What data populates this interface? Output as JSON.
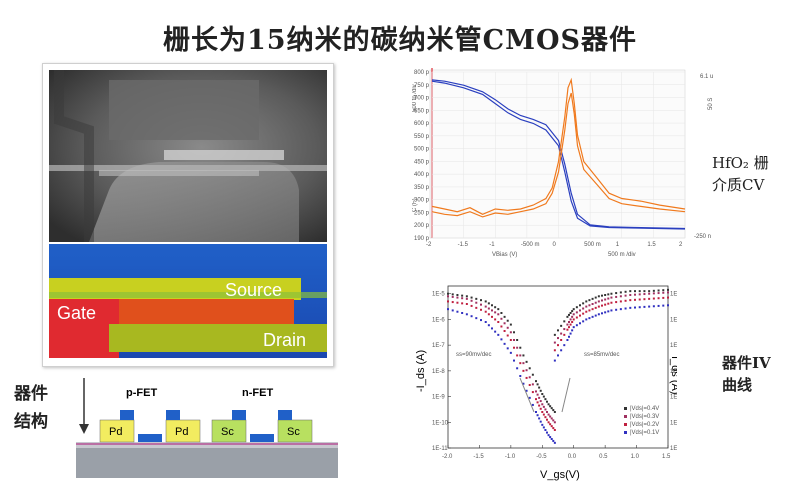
{
  "title": "栅长为15纳米的碳纳米管CMOS器件",
  "sem_image": {
    "labels": {
      "source": "Source",
      "gate": "Gate",
      "drain": "Drain"
    }
  },
  "structure": {
    "label_line1": "器件",
    "label_line2": "结构",
    "pfet_label": "p-FET",
    "nfet_label": "n-FET",
    "pfet_contacts": [
      "Pd",
      "Pd"
    ],
    "nfet_contacts": [
      "Sc",
      "Sc"
    ]
  },
  "cv_caption": {
    "line1": "HfO₂ 栅",
    "line2": "介质CV"
  },
  "iv_caption": {
    "line1": "器件IV",
    "line2": "曲线"
  },
  "colors": {
    "blue": "#2a3fbf",
    "orange": "#f07a1e",
    "red_axis": "#e0303a"
  },
  "chart_data": [
    {
      "type": "line",
      "id": "cv",
      "xlabel": "VBias (V)",
      "x_unit_label": "500 m /div",
      "y_left_label": "C (F)",
      "y_left_unit": "500 fp /div",
      "y_right_unit": "50 S",
      "x_ticks": [
        "-2",
        "-1.5",
        "-1",
        "-500 m",
        "0",
        "500 m",
        "1",
        "1.5",
        "2"
      ],
      "y_ticks": [
        "800 p",
        "750 p",
        "700 p",
        "650 p",
        "600 p",
        "550 p",
        "500 p",
        "450 p",
        "400 p",
        "350 p",
        "300 p",
        "250 p",
        "200 p",
        "190 p"
      ],
      "y_right_top": "6.1 u",
      "y_right_bottom": "-250 n",
      "xlim": [
        -2,
        2
      ],
      "ylim": [
        190,
        820
      ],
      "series": [
        {
          "color": "blue",
          "x": [
            -2,
            -1.8,
            -1.5,
            -1.2,
            -1.0,
            -0.8,
            -0.6,
            -0.4,
            -0.2,
            0,
            0.1,
            0.2,
            0.3,
            0.5,
            0.8,
            1.2,
            1.6,
            2
          ],
          "y": [
            790,
            785,
            770,
            745,
            715,
            680,
            655,
            640,
            620,
            560,
            470,
            360,
            280,
            240,
            232,
            230,
            228,
            226
          ]
        },
        {
          "color": "blue",
          "x": [
            -2,
            -1.8,
            -1.5,
            -1.2,
            -1.0,
            -0.8,
            -0.6,
            -0.4,
            -0.2,
            0,
            0.1,
            0.2,
            0.3,
            0.5,
            0.8,
            1.2,
            1.6,
            2
          ],
          "y": [
            785,
            778,
            760,
            735,
            700,
            665,
            640,
            625,
            600,
            540,
            440,
            330,
            265,
            236,
            230,
            228,
            226,
            224
          ]
        },
        {
          "color": "orange",
          "x": [
            -2,
            -1.8,
            -1.6,
            -1.4,
            -1.2,
            -1.0,
            -0.8,
            -0.6,
            -0.4,
            -0.2,
            -0.1,
            0,
            0.1,
            0.15,
            0.2,
            0.25,
            0.3,
            0.4,
            0.6,
            0.8,
            1.0,
            1.3,
            1.6,
            2
          ],
          "y": [
            310,
            300,
            290,
            305,
            280,
            300,
            295,
            300,
            315,
            340,
            380,
            480,
            650,
            760,
            790,
            700,
            580,
            480,
            420,
            360,
            340,
            330,
            315,
            300
          ]
        },
        {
          "color": "orange",
          "x": [
            -2,
            -1.8,
            -1.6,
            -1.4,
            -1.2,
            -1.0,
            -0.8,
            -0.6,
            -0.4,
            -0.2,
            -0.1,
            0,
            0.1,
            0.15,
            0.2,
            0.25,
            0.3,
            0.4,
            0.6,
            0.8,
            1.0,
            1.3,
            1.6,
            2
          ],
          "y": [
            290,
            280,
            275,
            290,
            270,
            285,
            280,
            290,
            300,
            320,
            360,
            440,
            600,
            700,
            740,
            660,
            540,
            450,
            395,
            340,
            320,
            310,
            300,
            290
          ]
        }
      ]
    },
    {
      "type": "scatter",
      "id": "iv",
      "xlabel": "V_gs(V)",
      "ylabel_left": "-I_ds (A)",
      "ylabel_right": "I_ds (A)",
      "x_ticks": [
        "-2.0",
        "-1.5",
        "-1.0",
        "-0.5",
        "0.0",
        "0.5",
        "1.0",
        "1.5"
      ],
      "y_ticks": [
        "1E-5",
        "1E-6",
        "1E-7",
        "1E-8",
        "1E-9",
        "1E-10",
        "1E-11"
      ],
      "xlim": [
        -2.0,
        1.5
      ],
      "ylim_log10": [
        -11,
        -4.7
      ],
      "annotations": [
        "ss=90mv/dec",
        "ss=85mv/dec"
      ],
      "legend": [
        "|Vds|=0.4V",
        "|Vds|=0.3V",
        "|Vds|=0.2V",
        "|Vds|=0.1V"
      ],
      "series": [
        {
          "name": "|Vds|=0.4V",
          "color": "#333333",
          "p_x": [
            -2.0,
            -1.7,
            -1.4,
            -1.2,
            -1.0,
            -0.8,
            -0.6,
            -0.5,
            -0.4,
            -0.3
          ],
          "p_y": [
            -5.0,
            -5.1,
            -5.3,
            -5.6,
            -6.2,
            -7.4,
            -8.4,
            -8.9,
            -9.3,
            -9.6
          ],
          "n_x": [
            -0.3,
            -0.1,
            0.0,
            0.2,
            0.4,
            0.6,
            0.9,
            1.2,
            1.5
          ],
          "n_y": [
            -6.6,
            -5.9,
            -5.6,
            -5.3,
            -5.1,
            -5.0,
            -4.9,
            -4.9,
            -4.85
          ]
        },
        {
          "name": "|Vds|=0.3V",
          "color": "#a03060",
          "p_x": [
            -2.0,
            -1.7,
            -1.4,
            -1.2,
            -1.0,
            -0.8,
            -0.6,
            -0.5,
            -0.4,
            -0.3
          ],
          "p_y": [
            -5.1,
            -5.2,
            -5.5,
            -5.8,
            -6.5,
            -7.7,
            -8.8,
            -9.3,
            -9.7,
            -10.0
          ],
          "n_x": [
            -0.3,
            -0.1,
            0.0,
            0.2,
            0.4,
            0.6,
            0.9,
            1.2,
            1.5
          ],
          "n_y": [
            -6.9,
            -6.2,
            -5.8,
            -5.5,
            -5.3,
            -5.15,
            -5.05,
            -5.0,
            -4.95
          ]
        },
        {
          "name": "|Vds|=0.2V",
          "color": "#c02040",
          "p_x": [
            -2.0,
            -1.7,
            -1.4,
            -1.2,
            -1.0,
            -0.8,
            -0.6,
            -0.5,
            -0.4,
            -0.3
          ],
          "p_y": [
            -5.3,
            -5.4,
            -5.7,
            -6.1,
            -6.8,
            -8.0,
            -9.1,
            -9.6,
            -10.0,
            -10.3
          ],
          "n_x": [
            -0.3,
            -0.1,
            0.0,
            0.2,
            0.4,
            0.6,
            0.9,
            1.2,
            1.5
          ],
          "n_y": [
            -7.2,
            -6.4,
            -6.0,
            -5.7,
            -5.5,
            -5.35,
            -5.25,
            -5.2,
            -5.15
          ]
        },
        {
          "name": "|Vds|=0.1V",
          "color": "#3030c0",
          "p_x": [
            -2.0,
            -1.7,
            -1.4,
            -1.2,
            -1.0,
            -0.8,
            -0.6,
            -0.5,
            -0.4,
            -0.3
          ],
          "p_y": [
            -5.6,
            -5.8,
            -6.1,
            -6.6,
            -7.3,
            -8.5,
            -9.6,
            -10.1,
            -10.5,
            -10.8
          ],
          "n_x": [
            -0.3,
            -0.1,
            0.0,
            0.2,
            0.4,
            0.6,
            0.9,
            1.2,
            1.5
          ],
          "n_y": [
            -7.6,
            -6.8,
            -6.3,
            -6.0,
            -5.8,
            -5.65,
            -5.55,
            -5.5,
            -5.45
          ]
        }
      ]
    }
  ]
}
